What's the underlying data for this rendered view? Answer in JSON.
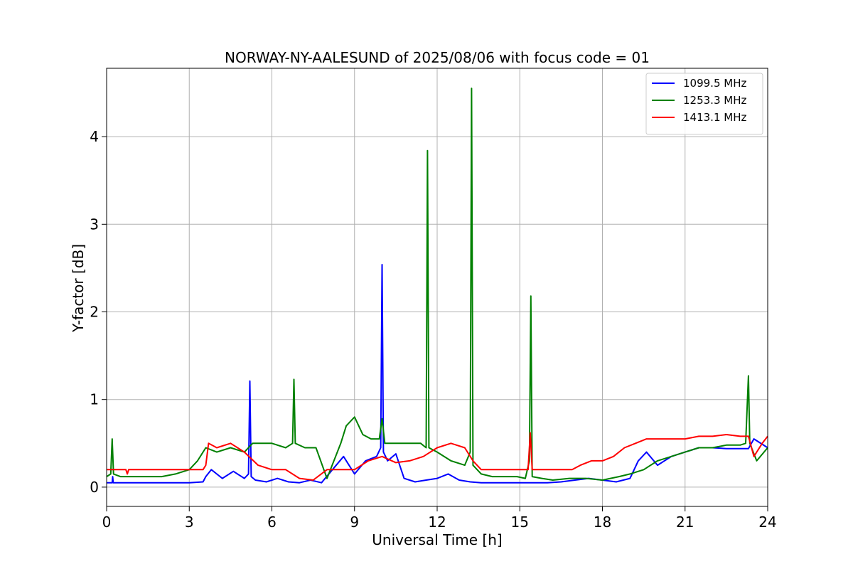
{
  "chart_data": {
    "type": "line",
    "title": "NORWAY-NY-AALESUND of 2025/08/06 with focus code = 01",
    "xlabel": "Universal Time [h]",
    "ylabel": "Y-factor [dB]",
    "xlim": [
      0,
      24
    ],
    "ylim": [
      -0.22,
      4.78
    ],
    "xticks": [
      0,
      3,
      6,
      9,
      12,
      15,
      18,
      21,
      24
    ],
    "yticks": [
      0,
      1,
      2,
      3,
      4
    ],
    "grid": true,
    "legend_position": "upper right",
    "series": [
      {
        "name": "1099.5 MHz",
        "color": "#0000ff",
        "x": [
          0,
          0.2,
          0.22,
          0.24,
          3.0,
          3.5,
          3.6,
          3.8,
          4.2,
          4.6,
          5.0,
          5.15,
          5.2,
          5.25,
          5.4,
          5.8,
          6.2,
          6.6,
          7.0,
          7.4,
          7.8,
          8.2,
          8.6,
          9.0,
          9.4,
          9.8,
          9.95,
          10.0,
          10.05,
          10.2,
          10.5,
          10.8,
          11.2,
          11.6,
          12.0,
          12.4,
          12.8,
          13.2,
          13.6,
          14.0,
          14.5,
          15.0,
          15.5,
          16.0,
          16.5,
          17.0,
          17.5,
          18.0,
          18.5,
          19.0,
          19.3,
          19.6,
          20.0,
          20.5,
          21.0,
          21.5,
          22.0,
          22.5,
          23.0,
          23.3,
          23.5,
          24
        ],
        "y": [
          0.05,
          0.05,
          0.12,
          0.05,
          0.05,
          0.06,
          0.12,
          0.2,
          0.1,
          0.18,
          0.1,
          0.15,
          1.21,
          0.12,
          0.08,
          0.06,
          0.1,
          0.06,
          0.05,
          0.08,
          0.05,
          0.2,
          0.35,
          0.15,
          0.3,
          0.35,
          0.45,
          2.54,
          0.4,
          0.3,
          0.38,
          0.1,
          0.06,
          0.08,
          0.1,
          0.15,
          0.08,
          0.06,
          0.05,
          0.05,
          0.05,
          0.05,
          0.05,
          0.05,
          0.06,
          0.08,
          0.1,
          0.08,
          0.06,
          0.1,
          0.3,
          0.4,
          0.25,
          0.35,
          0.4,
          0.45,
          0.45,
          0.44,
          0.44,
          0.44,
          0.55,
          0.45
        ]
      },
      {
        "name": "1253.3 MHz",
        "color": "#008000",
        "x": [
          0,
          0.15,
          0.2,
          0.25,
          0.5,
          1.0,
          2.0,
          2.5,
          3.0,
          3.3,
          3.6,
          4.0,
          4.5,
          5.0,
          5.3,
          5.6,
          6.0,
          6.5,
          6.75,
          6.8,
          6.85,
          7.2,
          7.6,
          8.0,
          8.5,
          8.7,
          9.0,
          9.3,
          9.6,
          9.9,
          10.0,
          10.1,
          10.5,
          11.0,
          11.4,
          11.6,
          11.65,
          11.7,
          12.0,
          12.5,
          13.0,
          13.2,
          13.25,
          13.3,
          13.6,
          14.0,
          14.5,
          14.9,
          15.2,
          15.35,
          15.4,
          15.45,
          15.8,
          16.2,
          16.8,
          17.4,
          18.0,
          18.6,
          19.0,
          19.5,
          20.0,
          20.5,
          21.0,
          21.5,
          22.0,
          22.5,
          23.0,
          23.2,
          23.3,
          23.35,
          23.6,
          24
        ],
        "y": [
          0.12,
          0.15,
          0.55,
          0.15,
          0.12,
          0.12,
          0.12,
          0.15,
          0.2,
          0.3,
          0.45,
          0.4,
          0.45,
          0.4,
          0.5,
          0.5,
          0.5,
          0.45,
          0.5,
          1.23,
          0.5,
          0.45,
          0.45,
          0.1,
          0.5,
          0.7,
          0.8,
          0.6,
          0.55,
          0.55,
          0.78,
          0.5,
          0.5,
          0.5,
          0.5,
          0.45,
          3.84,
          0.45,
          0.4,
          0.3,
          0.25,
          0.4,
          4.55,
          0.25,
          0.15,
          0.12,
          0.12,
          0.12,
          0.1,
          0.3,
          2.18,
          0.12,
          0.1,
          0.08,
          0.1,
          0.1,
          0.08,
          0.12,
          0.15,
          0.2,
          0.3,
          0.35,
          0.4,
          0.45,
          0.45,
          0.48,
          0.48,
          0.5,
          1.27,
          0.5,
          0.3,
          0.45
        ]
      },
      {
        "name": "1413.1 MHz",
        "color": "#ff0000",
        "x": [
          0,
          0.7,
          0.75,
          0.8,
          3.5,
          3.6,
          3.7,
          4.0,
          4.5,
          5.0,
          5.5,
          6.0,
          6.5,
          7.0,
          7.5,
          8.0,
          8.5,
          9.0,
          9.5,
          10.0,
          10.5,
          11.0,
          11.5,
          12.0,
          12.5,
          13.0,
          13.3,
          13.6,
          14.0,
          14.5,
          15.0,
          15.3,
          15.38,
          15.45,
          16.0,
          16.5,
          16.9,
          17.2,
          17.6,
          18.0,
          18.4,
          18.8,
          19.2,
          19.6,
          20.0,
          20.5,
          21.0,
          21.5,
          22.0,
          22.5,
          23.0,
          23.3,
          23.5,
          23.8,
          24
        ],
        "y": [
          0.2,
          0.2,
          0.15,
          0.2,
          0.2,
          0.25,
          0.5,
          0.45,
          0.5,
          0.4,
          0.25,
          0.2,
          0.2,
          0.1,
          0.08,
          0.2,
          0.2,
          0.2,
          0.3,
          0.35,
          0.28,
          0.3,
          0.35,
          0.45,
          0.5,
          0.45,
          0.3,
          0.2,
          0.2,
          0.2,
          0.2,
          0.2,
          0.62,
          0.2,
          0.2,
          0.2,
          0.2,
          0.25,
          0.3,
          0.3,
          0.35,
          0.45,
          0.5,
          0.55,
          0.55,
          0.55,
          0.55,
          0.58,
          0.58,
          0.6,
          0.58,
          0.58,
          0.35,
          0.5,
          0.58
        ]
      }
    ]
  }
}
